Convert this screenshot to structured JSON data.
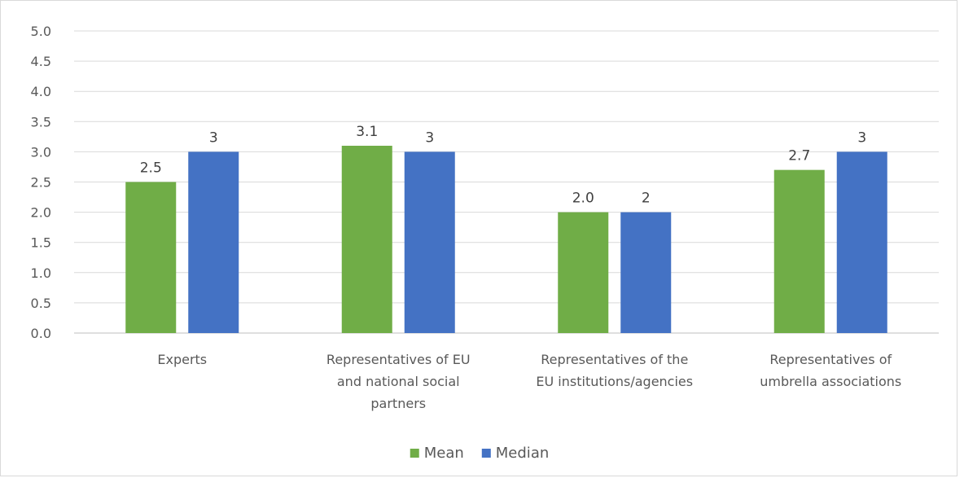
{
  "chart_data": {
    "type": "bar",
    "title": "",
    "xlabel": "",
    "ylabel": "",
    "ylim": [
      0,
      5
    ],
    "ytick_step": 0.5,
    "y_tick_labels": [
      "0.0",
      "0.5",
      "1.0",
      "1.5",
      "2.0",
      "2.5",
      "3.0",
      "3.5",
      "4.0",
      "4.5",
      "5.0"
    ],
    "grid": true,
    "legend_position": "bottom",
    "categories": [
      [
        "Experts"
      ],
      [
        "Representatives of EU",
        "and national social",
        "partners"
      ],
      [
        "Representatives of the",
        "EU institutions/agencies"
      ],
      [
        "Representatives of",
        "umbrella associations"
      ]
    ],
    "series": [
      {
        "name": "Mean",
        "color": "#70ad47",
        "values": [
          2.5,
          3.1,
          2.0,
          2.7
        ],
        "labels": [
          "2.5",
          "3.1",
          "2.0",
          "2.7"
        ]
      },
      {
        "name": "Median",
        "color": "#4472c4",
        "values": [
          3,
          3,
          2,
          3
        ],
        "labels": [
          "3",
          "3",
          "2",
          "3"
        ]
      }
    ]
  }
}
